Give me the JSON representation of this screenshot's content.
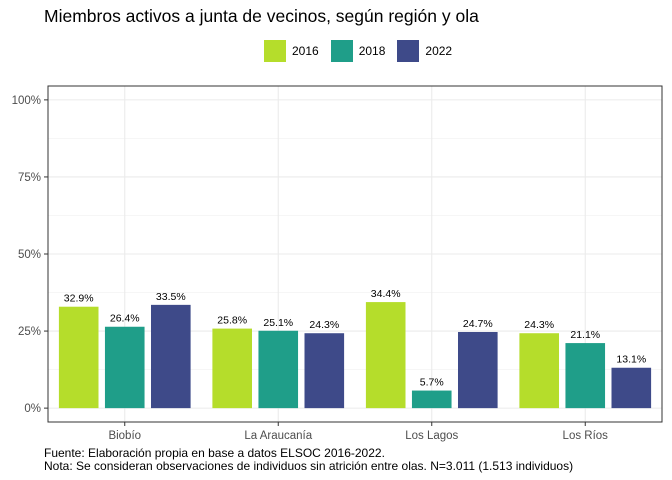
{
  "chart_data": {
    "type": "bar",
    "title": "Miembros activos a junta de vecinos, según región y ola",
    "categories": [
      "Biobío",
      "La Araucanía",
      "Los Lagos",
      "Los Ríos"
    ],
    "series": [
      {
        "name": "2016",
        "color": "#b5dd2b",
        "values": [
          32.9,
          25.8,
          34.4,
          24.3
        ],
        "labels": [
          "32.9%",
          "25.8%",
          "34.4%",
          "24.3%"
        ]
      },
      {
        "name": "2018",
        "color": "#1f9e89",
        "values": [
          26.4,
          25.1,
          5.7,
          21.1
        ],
        "labels": [
          "26.4%",
          "25.1%",
          "5.7%",
          "21.1%"
        ]
      },
      {
        "name": "2022",
        "color": "#3e4a89",
        "values": [
          33.5,
          24.3,
          24.7,
          13.1
        ],
        "labels": [
          "33.5%",
          "24.3%",
          "24.7%",
          "13.1%"
        ]
      }
    ],
    "ylim": [
      0,
      100
    ],
    "yticks": [
      0,
      25,
      50,
      75,
      100
    ],
    "ytick_labels": [
      "0%",
      "25%",
      "50%",
      "75%",
      "100%"
    ],
    "xlabel": "",
    "ylabel": "",
    "legend_position": "top",
    "grid": true
  },
  "caption": {
    "source": "Fuente: Elaboración propia en base a datos ELSOC 2016-2022.",
    "note": "Nota: Se consideran observaciones de individuos sin atrición entre olas. N=3.011 (1.513 individuos)"
  }
}
